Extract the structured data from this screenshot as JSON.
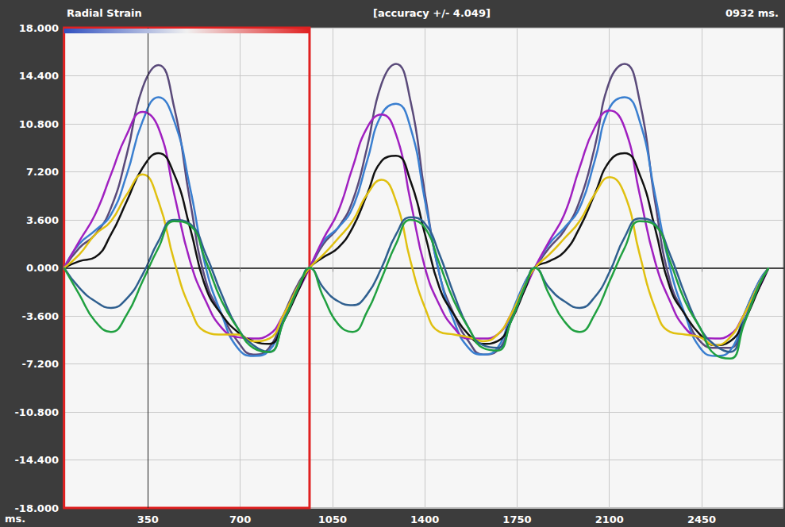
{
  "chart_data": {
    "type": "line",
    "y_label": "Radial Strain",
    "title": "[accuracy +/- 4.049]",
    "annotations": [
      {
        "text": "0932 ms."
      }
    ],
    "x_label": "ms.",
    "x": [
      32,
      90,
      150,
      210,
      270,
      330,
      390,
      450,
      510,
      570,
      630,
      690,
      750,
      810,
      865,
      925,
      963,
      1016,
      1071,
      1126,
      1181,
      1236,
      1291,
      1346,
      1401,
      1456,
      1511,
      1566,
      1621,
      1676,
      1727,
      1782,
      1817,
      1872,
      1929,
      1987,
      2044,
      2101,
      2158,
      2215,
      2273,
      2330,
      2387,
      2444,
      2501,
      2558,
      2611,
      2668,
      2704
    ],
    "series": [
      {
        "color": "#5a4a7a",
        "values": [
          0,
          1.5,
          2.5,
          4.5,
          8.5,
          13.5,
          15.2,
          12,
          5,
          -1,
          -3.5,
          -5.5,
          -6.5,
          -6,
          -3.5,
          -1,
          0,
          1.8,
          3,
          5,
          9,
          13.8,
          15.3,
          12.5,
          5.5,
          -0.5,
          -3.5,
          -5.5,
          -6.5,
          -6.2,
          -3.8,
          -1,
          0,
          1.5,
          2.8,
          5,
          9,
          14,
          15.3,
          12.5,
          5,
          -1,
          -3.5,
          -5.5,
          -6,
          -6,
          -3.5,
          -1,
          0
        ]
      },
      {
        "color": "#3a7fd0",
        "values": [
          0,
          1.8,
          2.8,
          4,
          7,
          11,
          12.8,
          11,
          6,
          0,
          -3.5,
          -6,
          -6.6,
          -6.2,
          -3.8,
          -1.2,
          0,
          2,
          3,
          4.5,
          8,
          11.5,
          12.3,
          10.5,
          5,
          -0.5,
          -4,
          -6,
          -6.5,
          -6,
          -3.5,
          -1,
          0,
          1.8,
          3,
          4.5,
          8,
          12,
          12.8,
          11,
          5.5,
          0,
          -3.5,
          -6,
          -6.6,
          -6.2,
          -3.5,
          -1,
          0
        ]
      },
      {
        "color": "#a020c0",
        "values": [
          0,
          2,
          4,
          7,
          10,
          11.7,
          10.5,
          5.5,
          0.5,
          -2.5,
          -4.5,
          -5.2,
          -5.3,
          -5,
          -3.5,
          -1.5,
          0,
          2.2,
          4.2,
          7.5,
          10.5,
          11.5,
          10,
          5,
          0,
          -2.8,
          -4.5,
          -5.3,
          -5.3,
          -5,
          -3.5,
          -1.5,
          0,
          2,
          4,
          7.5,
          10.5,
          11.8,
          10.5,
          5.5,
          0.5,
          -2.5,
          -4.5,
          -5.2,
          -5.3,
          -5,
          -3.5,
          -1.5,
          0
        ]
      },
      {
        "color": "#111111",
        "values": [
          0,
          0.5,
          0.8,
          2.5,
          5,
          7.5,
          8.6,
          7,
          3,
          -1.5,
          -3.5,
          -4.8,
          -5.5,
          -5.7,
          -4,
          -1.5,
          0,
          0.8,
          1.5,
          3,
          5.5,
          8,
          8.4,
          6.5,
          2.5,
          -1.5,
          -3.5,
          -5,
          -5.7,
          -5.5,
          -4,
          -1.5,
          0,
          0.5,
          1.2,
          3,
          5.5,
          8,
          8.6,
          7,
          3,
          -1.5,
          -3.5,
          -5,
          -5.8,
          -5.5,
          -4,
          -1.5,
          0
        ]
      },
      {
        "color": "#e0c010",
        "values": [
          0,
          1,
          2.5,
          3.5,
          5.5,
          7,
          5,
          0.5,
          -3,
          -4.8,
          -5,
          -5,
          -5.5,
          -5.3,
          -3.5,
          -1.2,
          0,
          1,
          2.2,
          3.5,
          5.5,
          6.6,
          5,
          0.5,
          -3,
          -4.8,
          -5,
          -5.2,
          -5.5,
          -5,
          -3.5,
          -1.2,
          0,
          1,
          2.2,
          3.5,
          5.5,
          6.8,
          5.5,
          1,
          -3,
          -4.8,
          -5,
          -5.2,
          -5.8,
          -5.2,
          -3.5,
          -1.2,
          0
        ]
      },
      {
        "color": "#2f5f8f",
        "values": [
          0,
          -1.5,
          -2.5,
          -3,
          -2.3,
          -0.5,
          2,
          3.6,
          3.3,
          1,
          -2,
          -4.5,
          -5.8,
          -6.3,
          -4,
          -1.3,
          0,
          -1.5,
          -2.5,
          -2.8,
          -2,
          0,
          2.5,
          3.8,
          3.3,
          1,
          -2,
          -4.5,
          -5.8,
          -6,
          -4,
          -1.3,
          0,
          -1.5,
          -2.5,
          -3,
          -2.2,
          -0.3,
          2.3,
          3.7,
          3.3,
          1,
          -2,
          -4.5,
          -5.8,
          -6.3,
          -4,
          -1.3,
          0
        ]
      },
      {
        "color": "#20a040",
        "values": [
          0,
          -2,
          -4,
          -4.8,
          -3.5,
          -1,
          1.5,
          3.5,
          3.2,
          0.5,
          -2.5,
          -4.5,
          -6,
          -6.3,
          -4,
          -1.3,
          0,
          -2.2,
          -4.2,
          -4.8,
          -3.3,
          -0.8,
          1.8,
          3.6,
          3,
          0.3,
          -2.5,
          -4.5,
          -6,
          -6.2,
          -4,
          -1.3,
          0,
          -2,
          -4,
          -4.8,
          -3.5,
          -1,
          1.5,
          3.5,
          3.2,
          0.5,
          -2.5,
          -4.5,
          -6.5,
          -6.8,
          -4.2,
          -1.3,
          0
        ]
      }
    ],
    "selection": [
      32,
      963
    ],
    "cursor": 350,
    "xlim": [
      30,
      2760
    ],
    "xticks": [
      350,
      700,
      1050,
      1400,
      1750,
      2100,
      2450
    ],
    "ylim": [
      -18,
      18
    ],
    "yticks": [
      {
        "value": -18,
        "label": "-18.000"
      },
      {
        "value": -14.4,
        "label": "-14.400"
      },
      {
        "value": -10.8,
        "label": "-10.800"
      },
      {
        "value": -7.2,
        "label": "-7.200"
      },
      {
        "value": -3.6,
        "label": "-3.600"
      },
      {
        "value": 0,
        "label": "0.000"
      },
      {
        "value": 3.6,
        "label": "3.600"
      },
      {
        "value": 7.2,
        "label": "7.200"
      },
      {
        "value": 10.8,
        "label": "10.800"
      },
      {
        "value": 14.4,
        "label": "14.400"
      },
      {
        "value": 18,
        "label": "18.000"
      }
    ],
    "grid": true
  }
}
